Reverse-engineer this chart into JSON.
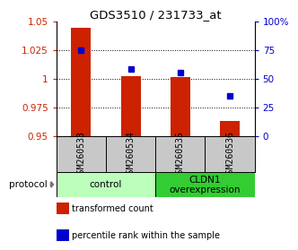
{
  "title": "GDS3510 / 231733_at",
  "samples": [
    "GSM260533",
    "GSM260534",
    "GSM260535",
    "GSM260536"
  ],
  "bar_values": [
    1.044,
    1.002,
    1.001,
    0.963
  ],
  "bar_baseline": 0.95,
  "percentile_values": [
    75,
    58,
    55,
    35
  ],
  "ylim": [
    0.95,
    1.05
  ],
  "yticks_left": [
    0.95,
    0.975,
    1.0,
    1.025,
    1.05
  ],
  "yticks_left_labels": [
    "0.95",
    "0.975",
    "1",
    "1.025",
    "1.05"
  ],
  "yticks_right": [
    0,
    25,
    50,
    75,
    100
  ],
  "yticks_right_labels": [
    "0",
    "25",
    "50",
    "75",
    "100%"
  ],
  "bar_color": "#cc2200",
  "dot_color": "#0000cc",
  "groups": [
    {
      "label": "control",
      "indices": [
        0,
        1
      ],
      "color": "#bbffbb"
    },
    {
      "label": "CLDN1\noverexpression",
      "indices": [
        2,
        3
      ],
      "color": "#33cc33"
    }
  ],
  "protocol_label": "protocol",
  "legend_items": [
    {
      "color": "#cc2200",
      "label": "transformed count"
    },
    {
      "color": "#0000cc",
      "label": "percentile rank within the sample"
    }
  ],
  "label_bg_color": "#c8c8c8"
}
